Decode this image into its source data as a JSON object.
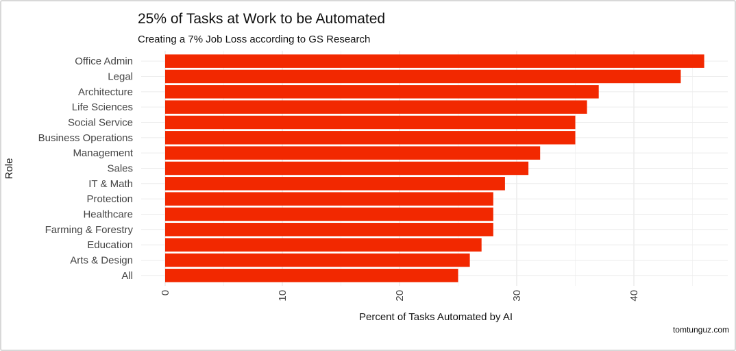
{
  "chart_data": {
    "type": "bar",
    "orientation": "horizontal",
    "title": "25% of Tasks at Work to be Automated",
    "subtitle": "Creating a 7% Job Loss according to GS Research",
    "xlabel": "Percent of Tasks Automated by AI",
    "ylabel": "Role",
    "caption": "tomtunguz.com",
    "categories": [
      "Office Admin",
      "Legal",
      "Architecture",
      "Life Sciences",
      "Social Service",
      "Business Operations",
      "Management",
      "Sales",
      "IT & Math",
      "Protection",
      "Healthcare",
      "Farming & Forestry",
      "Education",
      "Arts & Design",
      "All"
    ],
    "values": [
      46,
      44,
      37,
      36,
      35,
      35,
      32,
      31,
      29,
      28,
      28,
      28,
      27,
      26,
      25
    ],
    "xlim": [
      0,
      48
    ],
    "xticks": [
      0,
      10,
      20,
      30,
      40
    ],
    "bar_color": "#f22800",
    "grid": true,
    "legend": "none"
  }
}
